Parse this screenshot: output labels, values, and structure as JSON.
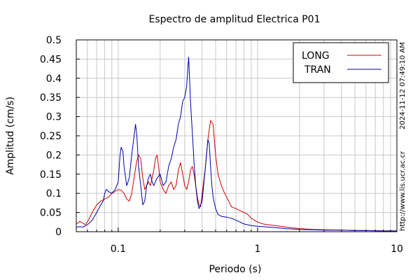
{
  "chart_data": {
    "type": "line",
    "title": "Espectro de amplitud Electrica P01",
    "xlabel": "Periodo (s)",
    "ylabel": "Amplitud (cm/s)",
    "x_scale": "log",
    "xlim": [
      0.05,
      10
    ],
    "ylim": [
      0,
      0.5
    ],
    "x_ticks": [
      0.1,
      1,
      10
    ],
    "x_tick_labels": [
      "0.1",
      "1",
      "10"
    ],
    "y_ticks": [
      0,
      0.05,
      0.1,
      0.15,
      0.2,
      0.25,
      0.3,
      0.35,
      0.4,
      0.45,
      0.5
    ],
    "y_tick_labels": [
      "0",
      "0.05",
      "0.1",
      "0.15",
      "0.2",
      "0.25",
      "0.3",
      "0.35",
      "0.4",
      "0.45",
      "0.5"
    ],
    "grid": true,
    "legend_position": "top-right",
    "series": [
      {
        "name": "LONG",
        "color": "#cc0000",
        "points": [
          [
            0.05,
            0.02
          ],
          [
            0.053,
            0.027
          ],
          [
            0.056,
            0.022
          ],
          [
            0.058,
            0.018
          ],
          [
            0.061,
            0.03
          ],
          [
            0.065,
            0.05
          ],
          [
            0.07,
            0.07
          ],
          [
            0.075,
            0.08
          ],
          [
            0.08,
            0.085
          ],
          [
            0.085,
            0.09
          ],
          [
            0.09,
            0.1
          ],
          [
            0.095,
            0.105
          ],
          [
            0.1,
            0.11
          ],
          [
            0.105,
            0.108
          ],
          [
            0.11,
            0.1
          ],
          [
            0.115,
            0.085
          ],
          [
            0.12,
            0.08
          ],
          [
            0.125,
            0.1
          ],
          [
            0.13,
            0.14
          ],
          [
            0.135,
            0.18
          ],
          [
            0.14,
            0.2
          ],
          [
            0.145,
            0.19
          ],
          [
            0.15,
            0.14
          ],
          [
            0.155,
            0.11
          ],
          [
            0.16,
            0.12
          ],
          [
            0.165,
            0.13
          ],
          [
            0.17,
            0.12
          ],
          [
            0.175,
            0.14
          ],
          [
            0.18,
            0.16
          ],
          [
            0.185,
            0.19
          ],
          [
            0.19,
            0.2
          ],
          [
            0.195,
            0.17
          ],
          [
            0.2,
            0.13
          ],
          [
            0.21,
            0.11
          ],
          [
            0.22,
            0.1
          ],
          [
            0.23,
            0.12
          ],
          [
            0.24,
            0.13
          ],
          [
            0.25,
            0.11
          ],
          [
            0.26,
            0.12
          ],
          [
            0.27,
            0.16
          ],
          [
            0.28,
            0.18
          ],
          [
            0.29,
            0.15
          ],
          [
            0.3,
            0.12
          ],
          [
            0.31,
            0.11
          ],
          [
            0.32,
            0.13
          ],
          [
            0.33,
            0.16
          ],
          [
            0.34,
            0.17
          ],
          [
            0.35,
            0.15
          ],
          [
            0.36,
            0.12
          ],
          [
            0.37,
            0.09
          ],
          [
            0.38,
            0.07
          ],
          [
            0.39,
            0.065
          ],
          [
            0.4,
            0.1
          ],
          [
            0.42,
            0.16
          ],
          [
            0.44,
            0.24
          ],
          [
            0.46,
            0.29
          ],
          [
            0.48,
            0.28
          ],
          [
            0.5,
            0.2
          ],
          [
            0.52,
            0.15
          ],
          [
            0.55,
            0.12
          ],
          [
            0.58,
            0.1
          ],
          [
            0.6,
            0.09
          ],
          [
            0.65,
            0.065
          ],
          [
            0.7,
            0.06
          ],
          [
            0.75,
            0.055
          ],
          [
            0.8,
            0.05
          ],
          [
            0.85,
            0.045
          ],
          [
            0.9,
            0.035
          ],
          [
            1.0,
            0.025
          ],
          [
            1.1,
            0.02
          ],
          [
            1.2,
            0.018
          ],
          [
            1.4,
            0.015
          ],
          [
            1.6,
            0.012
          ],
          [
            1.8,
            0.01
          ],
          [
            2.0,
            0.008
          ],
          [
            2.5,
            0.006
          ],
          [
            3.0,
            0.005
          ],
          [
            4.0,
            0.004
          ],
          [
            5.0,
            0.003
          ],
          [
            6.0,
            0.003
          ],
          [
            8.0,
            0.002
          ],
          [
            10.0,
            0.002
          ]
        ]
      },
      {
        "name": "TRAN",
        "color": "#0000aa",
        "points": [
          [
            0.05,
            0.012
          ],
          [
            0.053,
            0.013
          ],
          [
            0.056,
            0.012
          ],
          [
            0.058,
            0.015
          ],
          [
            0.061,
            0.02
          ],
          [
            0.065,
            0.03
          ],
          [
            0.07,
            0.05
          ],
          [
            0.075,
            0.07
          ],
          [
            0.078,
            0.08
          ],
          [
            0.08,
            0.1
          ],
          [
            0.082,
            0.11
          ],
          [
            0.085,
            0.105
          ],
          [
            0.09,
            0.1
          ],
          [
            0.095,
            0.11
          ],
          [
            0.1,
            0.13
          ],
          [
            0.103,
            0.2
          ],
          [
            0.105,
            0.22
          ],
          [
            0.108,
            0.21
          ],
          [
            0.11,
            0.17
          ],
          [
            0.115,
            0.12
          ],
          [
            0.12,
            0.14
          ],
          [
            0.125,
            0.2
          ],
          [
            0.13,
            0.25
          ],
          [
            0.133,
            0.28
          ],
          [
            0.136,
            0.25
          ],
          [
            0.14,
            0.17
          ],
          [
            0.145,
            0.12
          ],
          [
            0.15,
            0.07
          ],
          [
            0.155,
            0.08
          ],
          [
            0.16,
            0.12
          ],
          [
            0.165,
            0.14
          ],
          [
            0.17,
            0.15
          ],
          [
            0.175,
            0.13
          ],
          [
            0.18,
            0.12
          ],
          [
            0.19,
            0.14
          ],
          [
            0.2,
            0.15
          ],
          [
            0.21,
            0.12
          ],
          [
            0.22,
            0.13
          ],
          [
            0.23,
            0.17
          ],
          [
            0.24,
            0.19
          ],
          [
            0.25,
            0.22
          ],
          [
            0.26,
            0.24
          ],
          [
            0.27,
            0.28
          ],
          [
            0.28,
            0.3
          ],
          [
            0.29,
            0.34
          ],
          [
            0.3,
            0.35
          ],
          [
            0.31,
            0.38
          ],
          [
            0.315,
            0.42
          ],
          [
            0.32,
            0.455
          ],
          [
            0.325,
            0.4
          ],
          [
            0.33,
            0.34
          ],
          [
            0.34,
            0.26
          ],
          [
            0.35,
            0.18
          ],
          [
            0.36,
            0.12
          ],
          [
            0.37,
            0.08
          ],
          [
            0.38,
            0.06
          ],
          [
            0.4,
            0.08
          ],
          [
            0.42,
            0.16
          ],
          [
            0.43,
            0.2
          ],
          [
            0.44,
            0.24
          ],
          [
            0.45,
            0.23
          ],
          [
            0.46,
            0.17
          ],
          [
            0.47,
            0.12
          ],
          [
            0.48,
            0.09
          ],
          [
            0.5,
            0.06
          ],
          [
            0.52,
            0.045
          ],
          [
            0.55,
            0.04
          ],
          [
            0.6,
            0.038
          ],
          [
            0.65,
            0.035
          ],
          [
            0.7,
            0.03
          ],
          [
            0.75,
            0.025
          ],
          [
            0.8,
            0.02
          ],
          [
            0.85,
            0.018
          ],
          [
            0.9,
            0.016
          ],
          [
            1.0,
            0.014
          ],
          [
            1.2,
            0.012
          ],
          [
            1.4,
            0.01
          ],
          [
            1.6,
            0.008
          ],
          [
            2.0,
            0.006
          ],
          [
            2.5,
            0.005
          ],
          [
            3.0,
            0.004
          ],
          [
            4.0,
            0.004
          ],
          [
            5.0,
            0.003
          ],
          [
            6.0,
            0.003
          ],
          [
            8.0,
            0.002
          ],
          [
            10.0,
            0.002
          ]
        ]
      }
    ]
  },
  "side_labels": {
    "timestamp": "2024-11-12 07:49:10 AM",
    "url": "http://www.lis.ucr.ac.cr"
  }
}
